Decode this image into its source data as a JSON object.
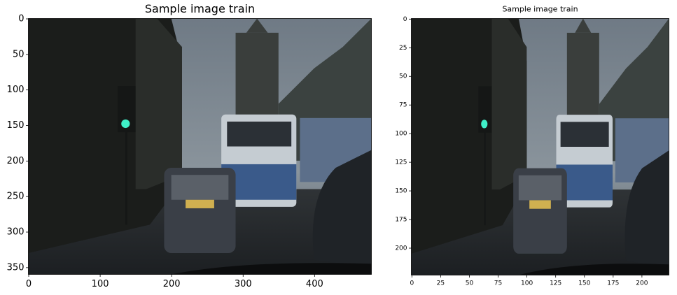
{
  "chart_data": [
    {
      "type": "image",
      "title": "Sample image train",
      "xlim": [
        -0.5,
        479.5
      ],
      "ylim": [
        359.5,
        -0.5
      ],
      "xticks": [
        0,
        100,
        200,
        300,
        400
      ],
      "yticks": [
        0,
        50,
        100,
        150,
        200,
        250,
        300,
        350
      ]
    },
    {
      "type": "image",
      "title": "Sample image train",
      "xlim": [
        -0.5,
        223.5
      ],
      "ylim": [
        223.5,
        -0.5
      ],
      "xticks": [
        0,
        25,
        50,
        75,
        100,
        125,
        150,
        175,
        200
      ],
      "yticks": [
        0,
        25,
        50,
        75,
        100,
        125,
        150,
        175,
        200
      ]
    }
  ]
}
